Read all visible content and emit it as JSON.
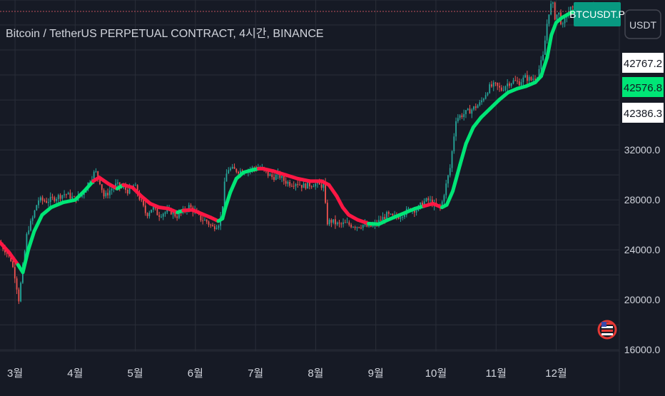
{
  "theme": {
    "background": "#161a25",
    "grid": "#2a2e39",
    "axis_text": "#d1d4dc",
    "title_text": "#d1d4dc",
    "up_candle": "#26a69a",
    "down_candle": "#ef5350",
    "ma_up": "#00e676",
    "ma_down": "#ff1744",
    "dotted_line": "#c0505a",
    "current_price_bg": "#00e676",
    "symbol_badge_bg": "#089981"
  },
  "header": {
    "title": "Bitcoin / TetherUS PERPETUAL CONTRACT, 4시간, BINANCE"
  },
  "symbol_badge": "BTCUSDT.P",
  "currency_button": "USDT",
  "price_labels": {
    "upper": "42767.2",
    "current": "42576.8",
    "lower": "42386.3"
  },
  "chart_data": {
    "type": "line",
    "title": "Bitcoin / TetherUS PERPETUAL CONTRACT, 4시간, BINANCE",
    "xlabel": "",
    "ylabel": "",
    "x_axis": {
      "tick_labels": [
        "3월",
        "4월",
        "5월",
        "6월",
        "7월",
        "8월",
        "9월",
        "10월",
        "11월",
        "12월"
      ],
      "tick_positions": [
        0.5,
        1.5,
        2.5,
        3.5,
        4.5,
        5.5,
        6.5,
        7.5,
        8.5,
        9.5
      ],
      "range": [
        0.25,
        10.55
      ]
    },
    "y_axis": {
      "tick_labels": [
        "16000.0",
        "20000.0",
        "24000.0",
        "28000.0",
        "32000.0"
      ],
      "ticks": [
        16000,
        20000,
        24000,
        28000,
        32000
      ],
      "range": [
        15900,
        44000
      ],
      "position": "right"
    },
    "grid": true,
    "series": [
      {
        "kind": "price",
        "points": [
          [
            0.25,
            24600
          ],
          [
            0.35,
            24000
          ],
          [
            0.45,
            23200
          ],
          [
            0.52,
            21800
          ],
          [
            0.58,
            20000
          ],
          [
            0.65,
            22800
          ],
          [
            0.72,
            25500
          ],
          [
            0.8,
            26400
          ],
          [
            0.9,
            28000
          ],
          [
            1.05,
            27900
          ],
          [
            1.2,
            28200
          ],
          [
            1.35,
            28500
          ],
          [
            1.5,
            28100
          ],
          [
            1.62,
            28300
          ],
          [
            1.75,
            29500
          ],
          [
            1.85,
            30300
          ],
          [
            1.92,
            29600
          ],
          [
            2.0,
            28200
          ],
          [
            2.1,
            28800
          ],
          [
            2.2,
            29200
          ],
          [
            2.3,
            29000
          ],
          [
            2.4,
            28700
          ],
          [
            2.5,
            29200
          ],
          [
            2.6,
            28000
          ],
          [
            2.7,
            26800
          ],
          [
            2.8,
            27400
          ],
          [
            2.9,
            26800
          ],
          [
            3.0,
            27000
          ],
          [
            3.1,
            27100
          ],
          [
            3.2,
            26700
          ],
          [
            3.3,
            27000
          ],
          [
            3.4,
            27500
          ],
          [
            3.5,
            27100
          ],
          [
            3.6,
            26500
          ],
          [
            3.7,
            26300
          ],
          [
            3.8,
            25800
          ],
          [
            3.9,
            26100
          ],
          [
            3.95,
            26800
          ],
          [
            4.0,
            29200
          ],
          [
            4.05,
            30500
          ],
          [
            4.15,
            30400
          ],
          [
            4.3,
            30300
          ],
          [
            4.45,
            30500
          ],
          [
            4.6,
            30600
          ],
          [
            4.7,
            30100
          ],
          [
            4.8,
            29800
          ],
          [
            4.9,
            30000
          ],
          [
            5.0,
            29500
          ],
          [
            5.1,
            29300
          ],
          [
            5.2,
            29400
          ],
          [
            5.3,
            29100
          ],
          [
            5.4,
            29200
          ],
          [
            5.5,
            29300
          ],
          [
            5.6,
            29100
          ],
          [
            5.65,
            29300
          ],
          [
            5.7,
            26200
          ],
          [
            5.78,
            26300
          ],
          [
            5.9,
            26000
          ],
          [
            6.0,
            26100
          ],
          [
            6.1,
            26000
          ],
          [
            6.2,
            25900
          ],
          [
            6.3,
            26000
          ],
          [
            6.4,
            25800
          ],
          [
            6.5,
            26000
          ],
          [
            6.6,
            26400
          ],
          [
            6.7,
            26800
          ],
          [
            6.8,
            26600
          ],
          [
            6.9,
            26700
          ],
          [
            7.0,
            27000
          ],
          [
            7.1,
            27300
          ],
          [
            7.2,
            27200
          ],
          [
            7.3,
            27800
          ],
          [
            7.4,
            28000
          ],
          [
            7.5,
            27500
          ],
          [
            7.6,
            27400
          ],
          [
            7.65,
            28500
          ],
          [
            7.75,
            30500
          ],
          [
            7.85,
            34500
          ],
          [
            7.95,
            34800
          ],
          [
            8.1,
            35200
          ],
          [
            8.25,
            35700
          ],
          [
            8.4,
            37000
          ],
          [
            8.5,
            37200
          ],
          [
            8.6,
            36800
          ],
          [
            8.7,
            37300
          ],
          [
            8.8,
            37500
          ],
          [
            8.9,
            37400
          ],
          [
            9.0,
            37800
          ],
          [
            9.1,
            37600
          ],
          [
            9.2,
            38000
          ],
          [
            9.3,
            39500
          ],
          [
            9.38,
            42800
          ],
          [
            9.45,
            43900
          ],
          [
            9.5,
            42500
          ],
          [
            9.55,
            43100
          ],
          [
            9.62,
            41800
          ],
          [
            9.7,
            43000
          ],
          [
            9.78,
            43400
          ],
          [
            9.85,
            42300
          ],
          [
            9.9,
            43700
          ],
          [
            9.98,
            42600
          ],
          [
            10.05,
            43300
          ],
          [
            10.12,
            42576.8
          ]
        ]
      },
      {
        "kind": "moving_average",
        "points": [
          [
            0.25,
            24600,
            "down"
          ],
          [
            0.4,
            23800,
            "down"
          ],
          [
            0.55,
            22800,
            "down"
          ],
          [
            0.63,
            22200,
            "up"
          ],
          [
            0.72,
            24000,
            "up"
          ],
          [
            0.82,
            25500,
            "up"
          ],
          [
            0.95,
            26800,
            "up"
          ],
          [
            1.1,
            27400,
            "up"
          ],
          [
            1.3,
            27800,
            "up"
          ],
          [
            1.5,
            28000,
            "up"
          ],
          [
            1.65,
            28700,
            "up"
          ],
          [
            1.8,
            29500,
            "up"
          ],
          [
            1.9,
            29800,
            "down"
          ],
          [
            2.05,
            29300,
            "down"
          ],
          [
            2.2,
            28900,
            "down"
          ],
          [
            2.3,
            29200,
            "up"
          ],
          [
            2.45,
            29000,
            "down"
          ],
          [
            2.6,
            28300,
            "down"
          ],
          [
            2.75,
            27700,
            "down"
          ],
          [
            2.9,
            27400,
            "down"
          ],
          [
            3.05,
            27300,
            "down"
          ],
          [
            3.2,
            27000,
            "down"
          ],
          [
            3.3,
            27150,
            "up"
          ],
          [
            3.45,
            27200,
            "down"
          ],
          [
            3.6,
            26900,
            "down"
          ],
          [
            3.75,
            26600,
            "down"
          ],
          [
            3.88,
            26300,
            "down"
          ],
          [
            3.95,
            26500,
            "up"
          ],
          [
            4.0,
            27400,
            "up"
          ],
          [
            4.08,
            28600,
            "up"
          ],
          [
            4.18,
            29700,
            "up"
          ],
          [
            4.3,
            30200,
            "up"
          ],
          [
            4.45,
            30400,
            "up"
          ],
          [
            4.55,
            30500,
            "up"
          ],
          [
            4.62,
            30500,
            "down"
          ],
          [
            4.8,
            30300,
            "down"
          ],
          [
            5.0,
            30000,
            "down"
          ],
          [
            5.2,
            29700,
            "down"
          ],
          [
            5.4,
            29500,
            "down"
          ],
          [
            5.6,
            29500,
            "down"
          ],
          [
            5.72,
            29200,
            "down"
          ],
          [
            5.85,
            28300,
            "down"
          ],
          [
            5.95,
            27400,
            "down"
          ],
          [
            6.05,
            26800,
            "down"
          ],
          [
            6.2,
            26400,
            "down"
          ],
          [
            6.38,
            26100,
            "down"
          ],
          [
            6.55,
            26050,
            "up"
          ],
          [
            6.7,
            26400,
            "up"
          ],
          [
            6.85,
            26700,
            "up"
          ],
          [
            7.0,
            27000,
            "up"
          ],
          [
            7.15,
            27300,
            "up"
          ],
          [
            7.3,
            27500,
            "up"
          ],
          [
            7.45,
            27700,
            "down"
          ],
          [
            7.6,
            27400,
            "down"
          ],
          [
            7.68,
            27600,
            "up"
          ],
          [
            7.78,
            28700,
            "up"
          ],
          [
            7.9,
            30800,
            "up"
          ],
          [
            8.0,
            32500,
            "up"
          ],
          [
            8.12,
            33800,
            "up"
          ],
          [
            8.25,
            34600,
            "up"
          ],
          [
            8.4,
            35300,
            "up"
          ],
          [
            8.55,
            36000,
            "up"
          ],
          [
            8.7,
            36600,
            "up"
          ],
          [
            8.85,
            36900,
            "up"
          ],
          [
            9.0,
            37100,
            "up"
          ],
          [
            9.15,
            37400,
            "up"
          ],
          [
            9.25,
            37900,
            "up"
          ],
          [
            9.35,
            39400,
            "up"
          ],
          [
            9.42,
            41200,
            "up"
          ],
          [
            9.5,
            42200,
            "up"
          ],
          [
            9.6,
            42600,
            "up"
          ],
          [
            9.75,
            43000,
            "up"
          ],
          [
            9.9,
            43300,
            "up"
          ],
          [
            10.05,
            43500,
            "up"
          ],
          [
            10.12,
            43700,
            "up"
          ]
        ]
      }
    ]
  }
}
